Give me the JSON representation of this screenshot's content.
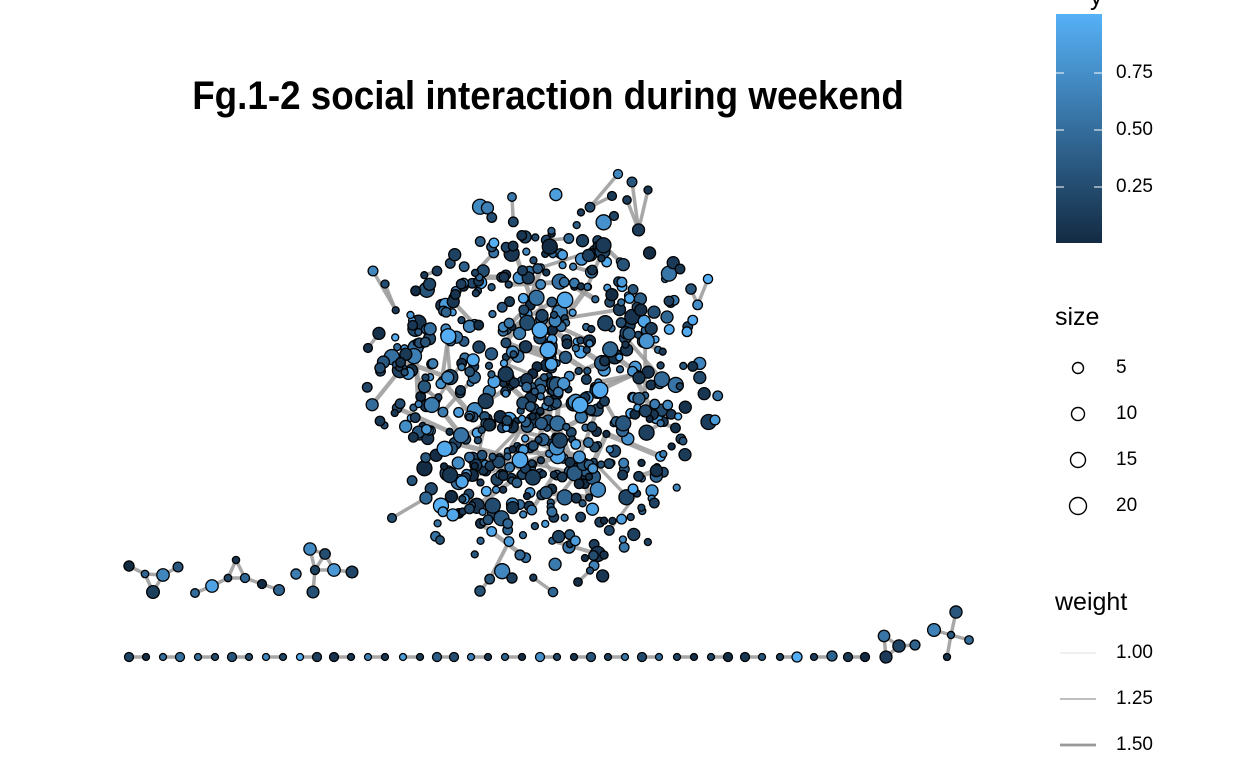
{
  "chart_data": {
    "type": "network",
    "title": "Fg.1-2 social interaction during weekend",
    "legend": {
      "color": {
        "title_partial": "y",
        "ticks": [
          0.25,
          0.5,
          0.75
        ],
        "tick_labels": [
          "0.25",
          "0.50",
          "0.75"
        ],
        "low_color": "#132B43",
        "high_color": "#56B1F7"
      },
      "size": {
        "title": "size",
        "values": [
          5,
          10,
          15,
          20
        ],
        "labels": [
          "5",
          "10",
          "15",
          "20"
        ]
      },
      "weight": {
        "title": "weight",
        "values": [
          1.0,
          1.25,
          1.5
        ],
        "labels": [
          "1.00",
          "1.25",
          "1.50"
        ]
      }
    },
    "components": {
      "main_cluster_nodes_approx": 700,
      "small_components": [
        {
          "nodes": 5
        },
        {
          "nodes": 6
        },
        {
          "nodes": 6
        },
        {
          "nodes": 4
        },
        {
          "nodes": 5
        }
      ],
      "isolated_pairs_approx": 25
    },
    "edge_color": "#999999",
    "node_outline": "#000000"
  }
}
